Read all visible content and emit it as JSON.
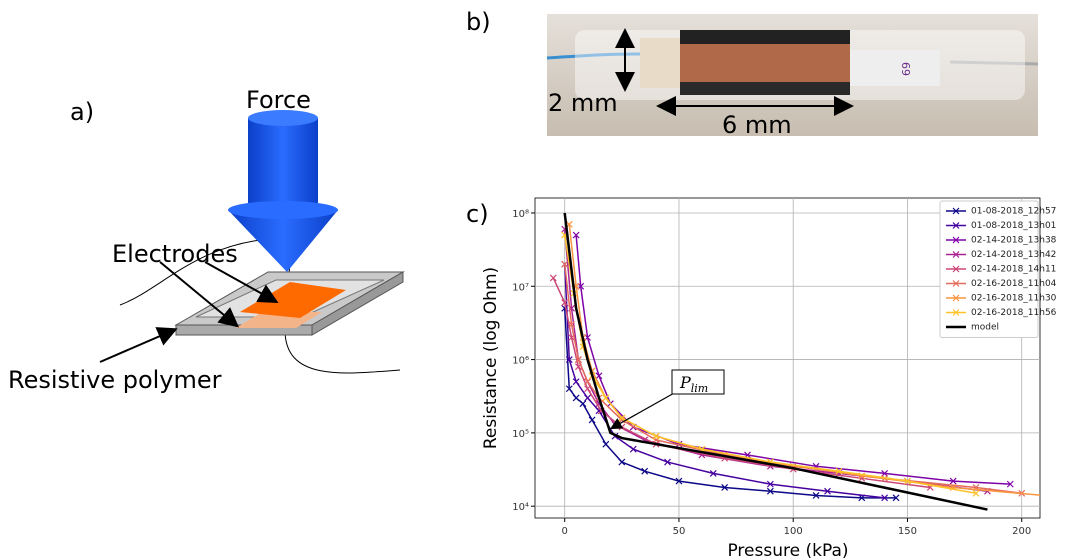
{
  "figure": {
    "panel_labels": [
      "a)",
      "b)",
      "c)"
    ],
    "diagram": {
      "force": "Force",
      "electrodes": "Electrodes",
      "polymer": "Resistive polymer"
    },
    "photo": {
      "width_label": "2 mm",
      "length_label": "6 mm",
      "sticker": "69"
    }
  },
  "chart_data": {
    "type": "line",
    "yscale": "log",
    "grid": true,
    "legend": "upper right",
    "xlabel": "Pressure (kPa)",
    "ylabel": "Resistance (log Ohm)",
    "annotation": {
      "symbol": "P",
      "subscript": "lim"
    },
    "xlim": [
      -13,
      208
    ],
    "ylim": [
      6900,
      160000000
    ],
    "xticks": [
      0,
      50,
      100,
      150,
      200
    ],
    "yticks": [
      {
        "value": 10000,
        "label": "10⁴"
      },
      {
        "value": 100000,
        "label": "10⁵"
      },
      {
        "value": 1000000,
        "label": "10⁶"
      },
      {
        "value": 10000000,
        "label": "10⁷"
      },
      {
        "value": 100000000,
        "label": "10⁸"
      }
    ],
    "series": [
      {
        "name": "01-08-2018_12h57",
        "color": "#0d0887",
        "marker": "x",
        "x": [
          0,
          2,
          5,
          8,
          12,
          18,
          25,
          35,
          50,
          70,
          90,
          110,
          130,
          145
        ],
        "values": [
          5000000,
          400000,
          300000,
          250000,
          150000,
          70000,
          40000,
          30000,
          22000,
          18000,
          16000,
          14000,
          13000,
          13000
        ]
      },
      {
        "name": "01-08-2018_13h01",
        "color": "#46039f",
        "marker": "x",
        "x": [
          0,
          2,
          5,
          10,
          15,
          22,
          30,
          45,
          65,
          90,
          115,
          140
        ],
        "values": [
          20000000,
          1000000,
          500000,
          300000,
          200000,
          90000,
          60000,
          40000,
          28000,
          20000,
          16000,
          13000
        ]
      },
      {
        "name": "02-14-2018_13h38",
        "color": "#7e03a8",
        "marker": "x",
        "x": [
          5,
          7,
          10,
          15,
          20,
          30,
          50,
          80,
          110,
          140,
          170,
          195
        ],
        "values": [
          50000000,
          10000000,
          2000000,
          600000,
          250000,
          120000,
          70000,
          50000,
          35000,
          28000,
          22000,
          20000
        ]
      },
      {
        "name": "02-14-2018_13h42",
        "color": "#a92395",
        "marker": "x",
        "x": [
          0,
          3,
          6,
          10,
          15,
          22,
          35,
          60,
          90,
          120,
          150,
          185
        ],
        "values": [
          60000000,
          5000000,
          1000000,
          500000,
          250000,
          130000,
          80000,
          50000,
          35000,
          28000,
          22000,
          16000
        ]
      },
      {
        "name": "02-14-2018_14h11",
        "color": "#cc4778",
        "marker": "x",
        "x": [
          -5,
          0,
          3,
          6,
          10,
          16,
          25,
          40,
          70,
          100,
          130,
          160
        ],
        "values": [
          13000000,
          6000000,
          2000000,
          800000,
          400000,
          200000,
          120000,
          70000,
          45000,
          32000,
          24000,
          18000
        ]
      },
      {
        "name": "02-16-2018_11h04",
        "color": "#e56b5d",
        "marker": "x",
        "x": [
          0,
          3,
          6,
          10,
          15,
          25,
          40,
          70,
          100,
          140,
          180,
          200
        ],
        "values": [
          20000000,
          3000000,
          1000000,
          500000,
          300000,
          150000,
          80000,
          50000,
          35000,
          24000,
          18000,
          15000
        ]
      },
      {
        "name": "02-16-2018_11h30",
        "color": "#f89540",
        "marker": "x",
        "x": [
          2,
          5,
          8,
          12,
          18,
          25,
          40,
          60,
          90,
          130,
          170,
          210
        ],
        "values": [
          70000000,
          10000000,
          2000000,
          700000,
          300000,
          160000,
          90000,
          60000,
          40000,
          26000,
          18000,
          14000
        ]
      },
      {
        "name": "02-16-2018_11h56",
        "color": "#fdc328",
        "marker": "x",
        "x": [
          0,
          4,
          8,
          12,
          18,
          25,
          40,
          60,
          90,
          120,
          150,
          180
        ],
        "values": [
          50000000,
          8000000,
          1500000,
          600000,
          300000,
          160000,
          90000,
          60000,
          40000,
          30000,
          22000,
          15000
        ]
      },
      {
        "name": "model",
        "color": "#000000",
        "x": [
          0,
          5,
          10,
          15,
          20,
          25,
          100,
          185
        ],
        "values": [
          100000000,
          5000000,
          1000000,
          300000,
          100000,
          85000,
          33000,
          9000
        ]
      }
    ]
  }
}
